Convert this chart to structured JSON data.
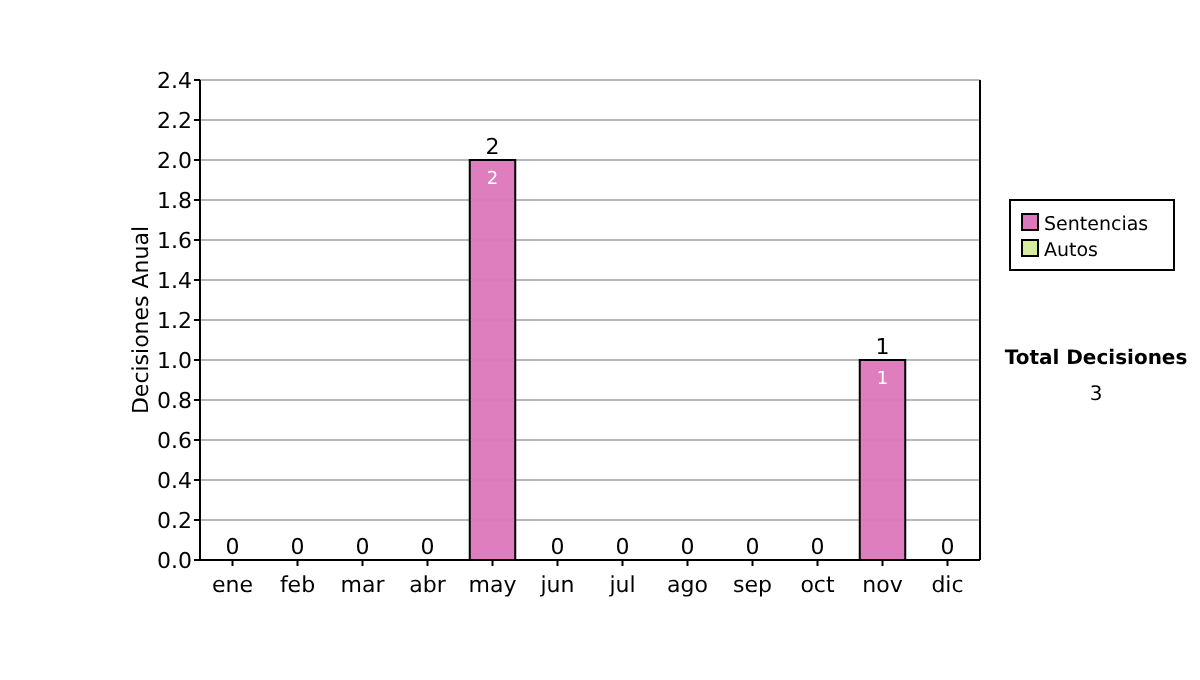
{
  "chart_data": {
    "type": "bar",
    "stacked": true,
    "ylabel": "Decisiones Anual",
    "categories": [
      "ene",
      "feb",
      "mar",
      "abr",
      "may",
      "jun",
      "jul",
      "ago",
      "sep",
      "oct",
      "nov",
      "dic"
    ],
    "series": [
      {
        "name": "Sentencias",
        "color": "#dd77bb",
        "values": [
          0,
          0,
          0,
          0,
          2,
          0,
          0,
          0,
          0,
          0,
          1,
          0
        ],
        "value_labels": [
          null,
          null,
          null,
          null,
          "2",
          null,
          null,
          null,
          null,
          null,
          "1",
          null
        ]
      },
      {
        "name": "Autos",
        "color": "#d8eca0",
        "values": [
          0,
          0,
          0,
          0,
          0,
          0,
          0,
          0,
          0,
          0,
          0,
          0
        ]
      }
    ],
    "totals": [
      "0",
      "0",
      "0",
      "0",
      "2",
      "0",
      "0",
      "0",
      "0",
      "0",
      "1",
      "0"
    ],
    "ylim": [
      0,
      2.4
    ],
    "yticks": [
      {
        "value": 0,
        "label": "0.0"
      },
      {
        "value": 0.2,
        "label": "0.2"
      },
      {
        "value": 0.4,
        "label": "0.4"
      },
      {
        "value": 0.6,
        "label": "0.6"
      },
      {
        "value": 0.8,
        "label": "0.8"
      },
      {
        "value": 1,
        "label": "1.0"
      },
      {
        "value": 1.2,
        "label": "1.2"
      },
      {
        "value": 1.4,
        "label": "1.4"
      },
      {
        "value": 1.6,
        "label": "1.6"
      },
      {
        "value": 1.8,
        "label": "1.8"
      },
      {
        "value": 2,
        "label": "2.0"
      },
      {
        "value": 2.2,
        "label": "2.2"
      },
      {
        "value": 2.4,
        "label": "2.4"
      }
    ],
    "grid": "y",
    "legend": "right",
    "annotations": [
      "Total Decisiones",
      "3"
    ]
  }
}
